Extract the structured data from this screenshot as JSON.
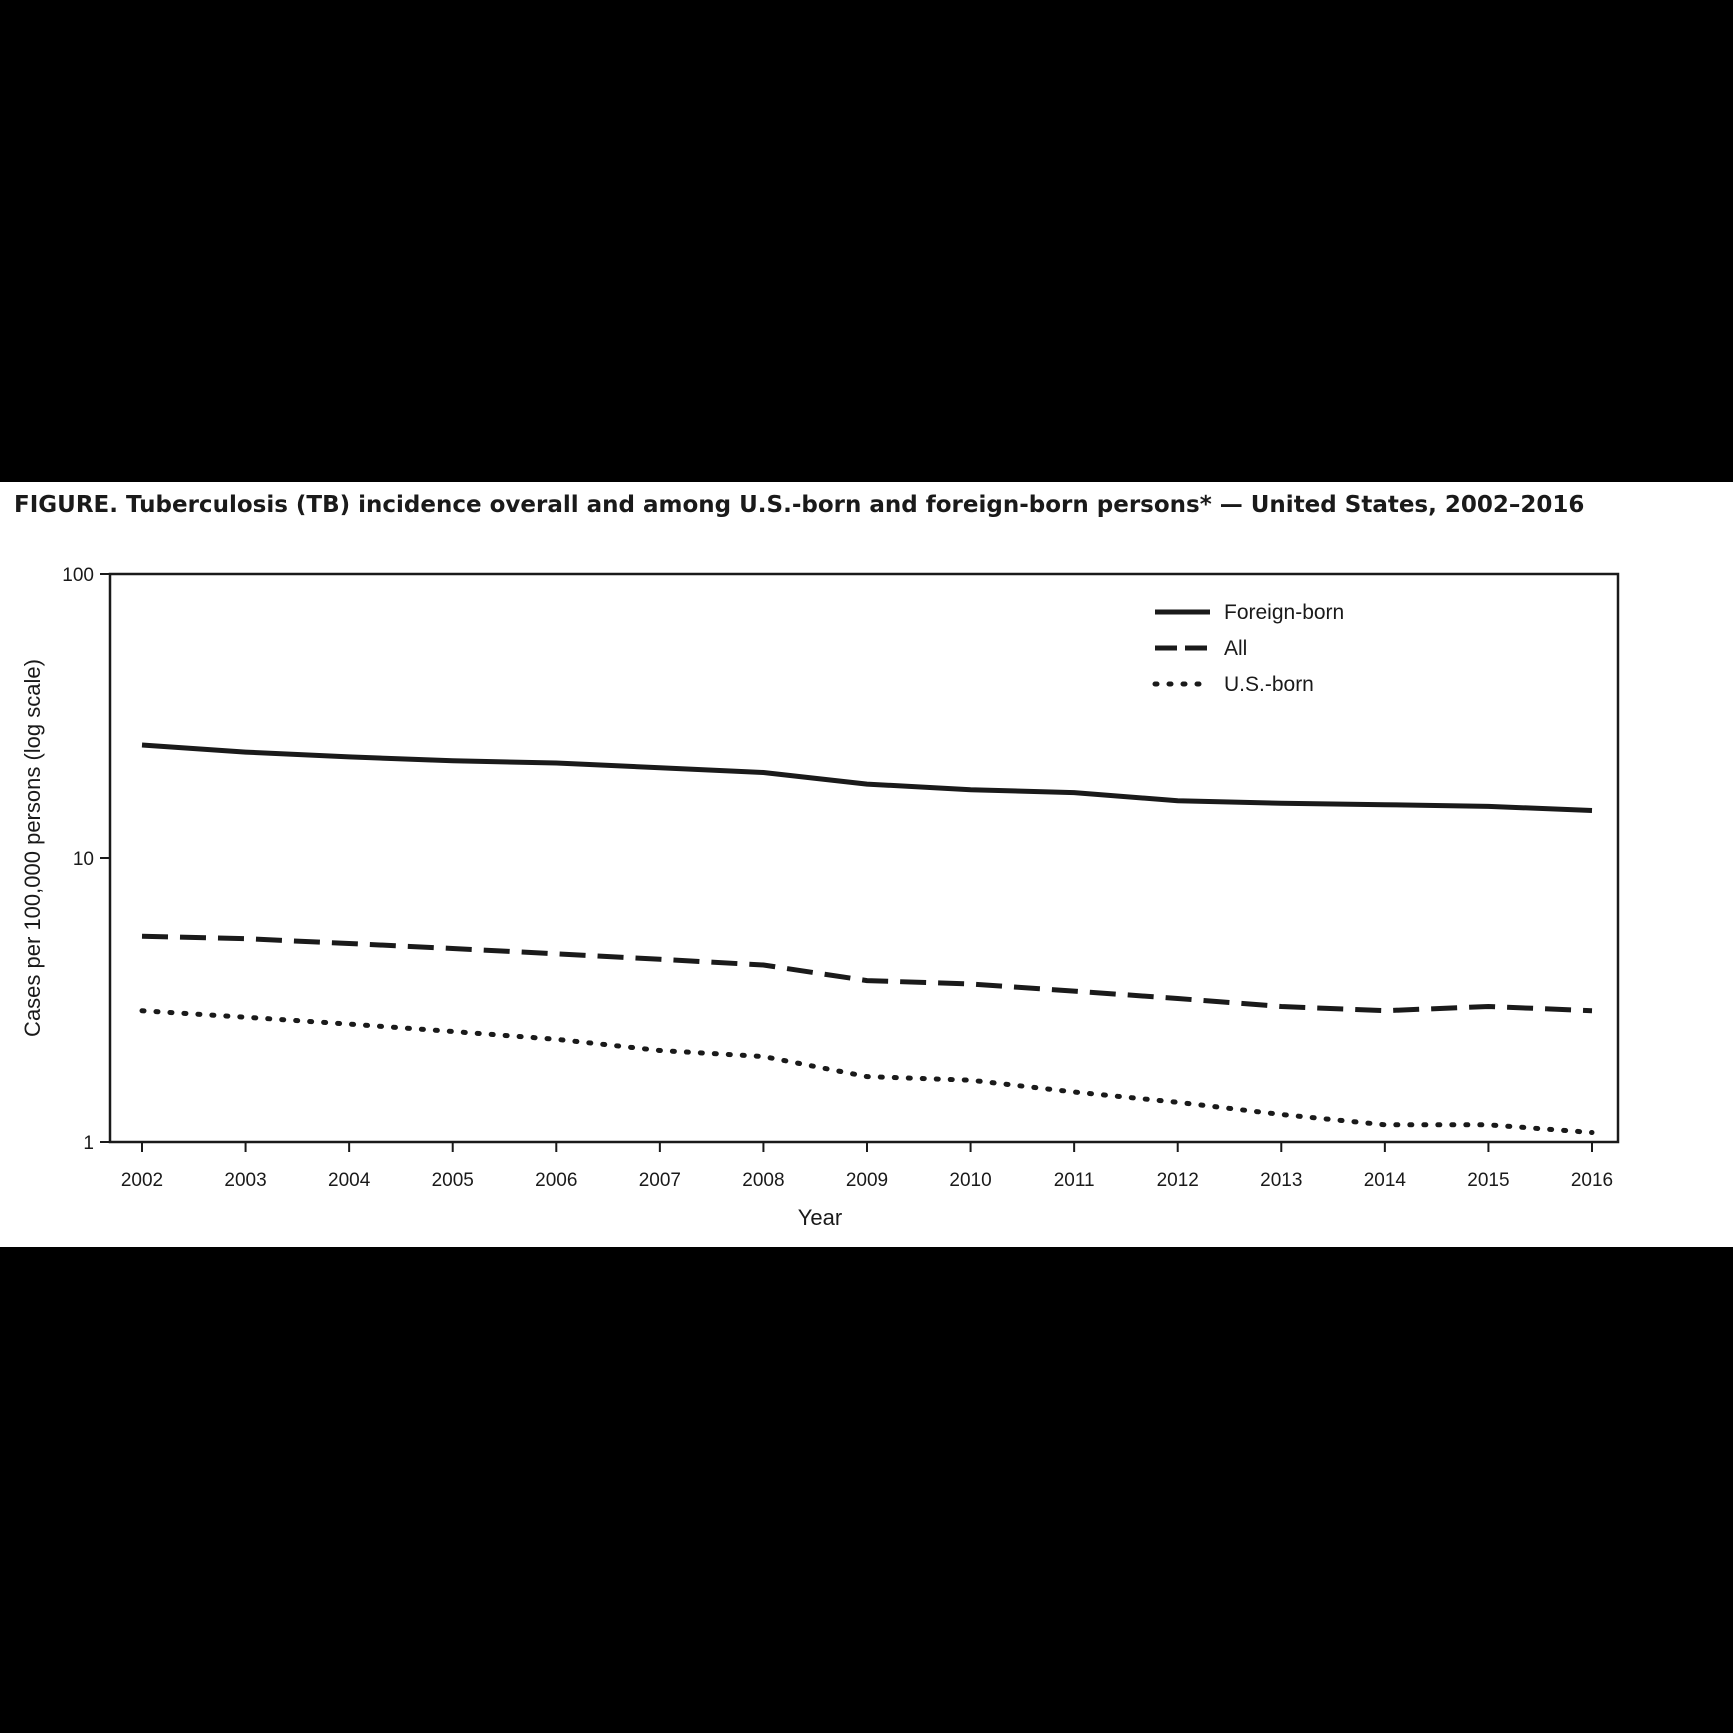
{
  "chart_data": {
    "type": "line",
    "title": "FIGURE. Tuberculosis (TB) incidence overall and among U.S.-born and foreign-born persons* — United States, 2002–2016",
    "xlabel": "Year",
    "ylabel": "Cases per 100,000 persons (log scale)",
    "yscale": "log",
    "ylim": [
      1,
      100
    ],
    "yticks": [
      1,
      10,
      100
    ],
    "grid": false,
    "legend_position": "top-right",
    "x": [
      2002,
      2003,
      2004,
      2005,
      2006,
      2007,
      2008,
      2009,
      2010,
      2011,
      2012,
      2013,
      2014,
      2015,
      2016
    ],
    "series": [
      {
        "name": "Foreign-born",
        "style": "solid",
        "color": "#1a1a1a",
        "values": [
          25.0,
          23.6,
          22.7,
          22.0,
          21.6,
          20.8,
          20.0,
          18.2,
          17.4,
          17.0,
          15.9,
          15.6,
          15.4,
          15.2,
          14.7
        ]
      },
      {
        "name": "All",
        "style": "dashed",
        "color": "#1a1a1a",
        "values": [
          5.3,
          5.2,
          5.0,
          4.8,
          4.6,
          4.4,
          4.2,
          3.7,
          3.6,
          3.4,
          3.2,
          3.0,
          2.9,
          3.0,
          2.9
        ]
      },
      {
        "name": "U.S.-born",
        "style": "dotted",
        "color": "#1a1a1a",
        "values": [
          2.9,
          2.75,
          2.6,
          2.45,
          2.3,
          2.1,
          2.0,
          1.7,
          1.65,
          1.5,
          1.38,
          1.25,
          1.15,
          1.15,
          1.08
        ]
      }
    ]
  }
}
